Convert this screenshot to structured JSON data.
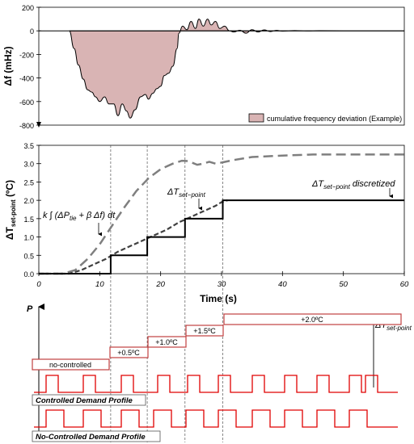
{
  "chart_data": [
    {
      "type": "area",
      "ylabel": "Δf (mHz)",
      "xlim": [
        0,
        60
      ],
      "ylim": [
        -800,
        200
      ],
      "yticks": [
        200,
        0,
        -200,
        -400,
        -600,
        -800
      ],
      "grid": false,
      "legend": {
        "position": "bottom-right",
        "label": "cumulative frequency deviation (Example)"
      },
      "series": [
        {
          "name": "cumulative frequency deviation (Example)",
          "x": [
            5,
            5.8,
            6.5,
            7.3,
            8.0,
            8.7,
            9.3,
            10.0,
            10.8,
            11.5,
            12.3,
            13.0,
            13.7,
            14.4,
            15.0,
            15.8,
            16.7,
            17.5,
            18.0,
            18.7,
            19.4,
            20.0,
            20.6,
            21.3,
            22.0,
            22.7,
            23.0,
            23.6,
            24.3,
            25.0,
            25.7,
            26.3,
            27.0,
            27.7,
            28.3,
            29.0,
            29.7,
            30.5,
            31.3,
            32.0,
            33.0,
            34.0,
            35.0,
            36.0,
            37.0,
            38.0,
            39.0,
            40.0,
            42.0,
            44.0,
            46.0,
            50.0,
            55.0,
            60.0
          ],
          "y": [
            0,
            -150,
            -290,
            -410,
            -500,
            -520,
            -560,
            -600,
            -560,
            -620,
            -620,
            -720,
            -620,
            -680,
            -740,
            -670,
            -560,
            -540,
            -580,
            -530,
            -490,
            -470,
            -380,
            -360,
            -300,
            -150,
            -20,
            40,
            10,
            80,
            20,
            100,
            40,
            100,
            50,
            80,
            20,
            40,
            0,
            -10,
            5,
            -20,
            10,
            -10,
            8,
            -6,
            4,
            -3,
            2,
            -1,
            1,
            0,
            0,
            0
          ],
          "color": "#d9b4b4",
          "edge": "#000000"
        }
      ]
    },
    {
      "type": "line",
      "ylabel": "ΔTset-point (ºC)",
      "xlabel": "Time (s)",
      "xlim": [
        0,
        60
      ],
      "ylim": [
        0,
        3.5
      ],
      "xticks": [
        0,
        10,
        20,
        30,
        40,
        50,
        60
      ],
      "yticks": [
        0.0,
        0.5,
        1.0,
        1.5,
        2.0,
        2.5,
        3.0,
        3.5
      ],
      "grid": false,
      "annotations": [
        {
          "text": "k ∫ (ΔPtie + βΔf) dt"
        },
        {
          "text": "ΔTset−point"
        },
        {
          "text": "ΔTset−point discretized"
        }
      ],
      "series": [
        {
          "name": "k ∫ (ΔPtie + βΔf) dt",
          "style": "long-dash",
          "color": "#7f7f7f",
          "x": [
            0,
            4,
            6,
            8,
            10,
            12,
            14,
            16,
            18,
            20,
            22,
            23.5,
            24.5,
            26,
            27,
            28,
            29,
            30,
            32,
            35,
            40,
            45,
            50,
            55,
            60
          ],
          "y": [
            0,
            0,
            0.1,
            0.4,
            0.8,
            1.3,
            1.8,
            2.25,
            2.6,
            2.85,
            3.0,
            3.08,
            3.07,
            2.97,
            3.0,
            3.05,
            3.0,
            3.03,
            3.1,
            3.18,
            3.22,
            3.25,
            3.25,
            3.25,
            3.25
          ]
        },
        {
          "name": "ΔTset−point",
          "style": "short-dash",
          "color": "#404040",
          "x": [
            0,
            5,
            7,
            9,
            11,
            13,
            15,
            17,
            19,
            21,
            23,
            25,
            27,
            29,
            30,
            31
          ],
          "y": [
            0,
            0,
            0.1,
            0.25,
            0.4,
            0.6,
            0.75,
            0.9,
            1.05,
            1.2,
            1.4,
            1.55,
            1.7,
            1.85,
            1.95,
            2.0
          ]
        },
        {
          "name": "ΔTset−point discretized",
          "style": "solid",
          "color": "#000000",
          "x": [
            0,
            11.8,
            11.8,
            17.8,
            17.8,
            24.0,
            24.0,
            30.2,
            30.2,
            60
          ],
          "y": [
            0,
            0,
            0.5,
            0.5,
            1.0,
            1.0,
            1.5,
            1.5,
            2.0,
            2.0
          ]
        }
      ],
      "vlines": [
        11.8,
        17.8,
        24.0,
        30.2
      ]
    },
    {
      "type": "diagram",
      "ylabel": "P",
      "arrow_label": "ΔTset-point",
      "level_labels": [
        "no-controlled",
        "+0.5ºC",
        "+1.0ºC",
        "+1.5ºC",
        "+2.0ºC"
      ],
      "profiles": [
        {
          "label": "Controlled Demand Profile",
          "color": "#e00000"
        },
        {
          "label": "No-Controlled Demand Profile",
          "color": "#e00000"
        }
      ]
    }
  ]
}
